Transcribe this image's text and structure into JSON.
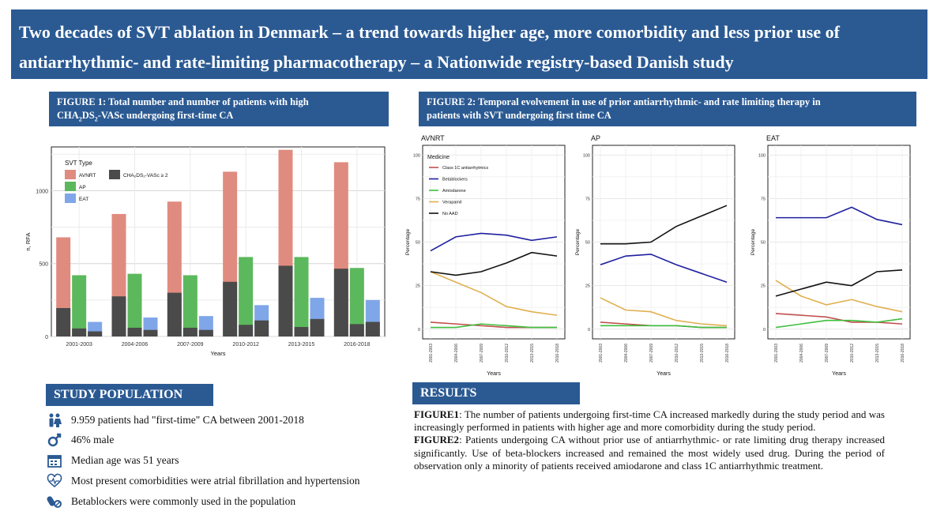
{
  "title": {
    "line1": "Two decades of SVT ablation in Denmark – a trend towards higher age, more comorbidity and less prior use of",
    "line2": "antiarrhythmic- and rate-limiting pharmacotherapy – a Nationwide registry-based Danish study"
  },
  "figure1": {
    "banner_line1": "FIGURE 1: Total number and number of patients with high",
    "banner_line2_a": "CHA",
    "banner_line2_sub1": "2",
    "banner_line2_b": "DS",
    "banner_line2_sub2": "2",
    "banner_line2_c": "-VASc undergoing first-time CA"
  },
  "figure2": {
    "banner_line1": "FIGURE 2: Temporal evolvement in use of prior antiarrhythmic- and rate limiting therapy in",
    "banner_line2": "patients with SVT undergoing first time CA"
  },
  "study": {
    "heading": "STUDY POPULATION",
    "items": [
      {
        "icon": "people-icon",
        "text": "9.959 patients had \"first-time\" CA between 2001-2018"
      },
      {
        "icon": "gender-icon",
        "text": "46% male"
      },
      {
        "icon": "calendar-icon",
        "text": "Median age was 51 years"
      },
      {
        "icon": "heart-icon",
        "text": "Most present comorbidities were atrial fibrillation and hypertension"
      },
      {
        "icon": "pills-icon",
        "text": "Betablockers were commonly used in the population"
      }
    ]
  },
  "results": {
    "heading": "RESULTS",
    "p1_label": "FIGURE1",
    "p1_text": ": The number of patients undergoing first-time CA increased markedly during the study period and was increasingly performed in patients with higher age and more comorbidity during the study period.",
    "p2_label": "FIGURE2",
    "p2_text": ": Patients undergoing CA without prior use of antiarrhythmic- or rate limiting drug therapy increased significantly. Use of beta-blockers increased and remained the most widely used drug. During the period of observation only a minority of patients received amiodarone and class 1C antiarrhythmic treatment."
  },
  "colors": {
    "banner": "#2b5a93",
    "avnrt": "#e08b7f",
    "ap": "#5cb85c",
    "eat": "#7fa6e8",
    "cha": "#4a4a4a",
    "class1c": "#c0504d",
    "beta": "#1f1fa0",
    "amio": "#3fbf3f",
    "verap": "#e0b050",
    "noaad": "#111111"
  },
  "chart_data": [
    {
      "type": "bar",
      "title": "",
      "xlabel": "Years",
      "ylabel": "n, RFA",
      "ylim": [
        0,
        1300
      ],
      "yticks": [
        0,
        500,
        1000
      ],
      "categories": [
        "2001-2003",
        "2004-2006",
        "2007-2009",
        "2010-2012",
        "2013-2015",
        "2016-2018"
      ],
      "legend_title": "SVT Type",
      "legend_cha": "CHA₂DS₂-VASc ≥ 2",
      "series": [
        {
          "name": "AVNRT",
          "values": [
            680,
            840,
            925,
            1130,
            1280,
            1195
          ],
          "cha_values": [
            195,
            275,
            300,
            375,
            485,
            465
          ]
        },
        {
          "name": "AP",
          "values": [
            420,
            430,
            420,
            545,
            545,
            470
          ],
          "cha_values": [
            55,
            60,
            60,
            80,
            65,
            85
          ]
        },
        {
          "name": "EAT",
          "values": [
            100,
            130,
            140,
            215,
            265,
            250
          ],
          "cha_values": [
            35,
            45,
            45,
            110,
            120,
            100
          ]
        }
      ],
      "grid": true
    },
    {
      "type": "line",
      "panels": [
        {
          "title": "AVNRT",
          "series": [
            {
              "name": "Class 1C antiarrhytmics",
              "values": [
                4,
                3,
                2,
                1,
                1,
                1
              ]
            },
            {
              "name": "Betablockers",
              "values": [
                45,
                53,
                55,
                54,
                51,
                53
              ]
            },
            {
              "name": "Amiodarone",
              "values": [
                1,
                1,
                3,
                2,
                1,
                1
              ]
            },
            {
              "name": "Verapamil",
              "values": [
                33,
                27,
                21,
                13,
                10,
                8
              ]
            },
            {
              "name": "No AAD",
              "values": [
                33,
                31,
                33,
                38,
                44,
                42
              ]
            }
          ]
        },
        {
          "title": "AP",
          "series": [
            {
              "name": "Class 1C antiarrhytmics",
              "values": [
                4,
                3,
                2,
                2,
                1,
                1
              ]
            },
            {
              "name": "Betablockers",
              "values": [
                37,
                42,
                43,
                37,
                32,
                27
              ]
            },
            {
              "name": "Amiodarone",
              "values": [
                2,
                2,
                2,
                2,
                1,
                1
              ]
            },
            {
              "name": "Verapamil",
              "values": [
                18,
                11,
                10,
                5,
                3,
                2
              ]
            },
            {
              "name": "No AAD",
              "values": [
                49,
                49,
                50,
                59,
                65,
                71
              ]
            }
          ]
        },
        {
          "title": "EAT",
          "series": [
            {
              "name": "Class 1C antiarrhytmics",
              "values": [
                9,
                8,
                7,
                4,
                4,
                3
              ]
            },
            {
              "name": "Betablockers",
              "values": [
                64,
                64,
                64,
                70,
                63,
                60
              ]
            },
            {
              "name": "Amiodarone",
              "values": [
                1,
                3,
                5,
                5,
                4,
                6
              ]
            },
            {
              "name": "Verapamil",
              "values": [
                28,
                19,
                14,
                17,
                13,
                10
              ]
            },
            {
              "name": "No AAD",
              "values": [
                19,
                23,
                27,
                25,
                33,
                34
              ]
            }
          ]
        }
      ],
      "categories": [
        "2001-2003",
        "2004-2006",
        "2007-2009",
        "2010-2012",
        "2013-2015",
        "2016-2018"
      ],
      "xlabel": "Years",
      "ylabel": "Percentage",
      "ylim": [
        0,
        100
      ],
      "yticks": [
        0,
        25,
        50,
        75,
        100
      ],
      "legend_title": "Medicine",
      "grid": true
    }
  ]
}
